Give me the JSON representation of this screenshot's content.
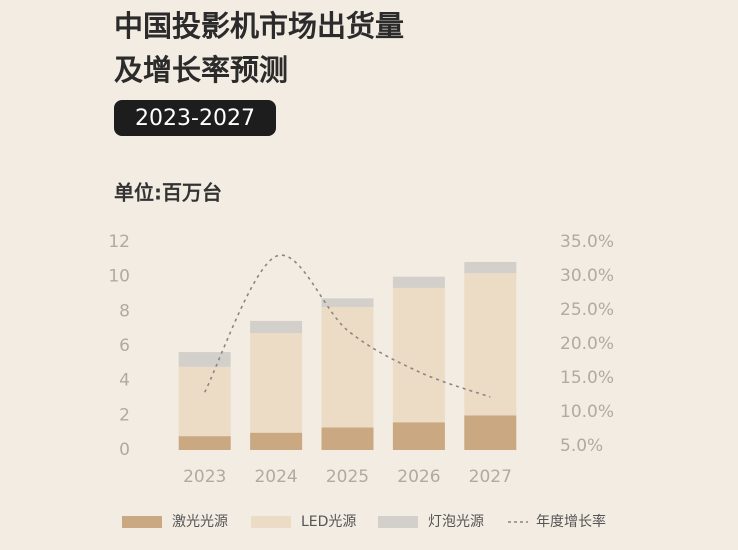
{
  "chart_data": {
    "type": "stacked-bar-line",
    "title": [
      "中国投影机市场出货量",
      "及增长率预测"
    ],
    "badge": "2023-2027",
    "unit_label": "单位:百万台",
    "categories": [
      "2023",
      "2024",
      "2025",
      "2026",
      "2027"
    ],
    "series": [
      {
        "name": "激光光源",
        "color": "#c9a882",
        "values": [
          0.8,
          1.0,
          1.3,
          1.6,
          2.0
        ]
      },
      {
        "name": "LED光源",
        "color": "#ecdcc6",
        "values": [
          4.0,
          5.75,
          6.95,
          7.75,
          8.2
        ]
      },
      {
        "name": "灯泡光源",
        "color": "#d3d0cb",
        "values": [
          0.85,
          0.7,
          0.5,
          0.65,
          0.65
        ]
      },
      {
        "name": "年度增长率",
        "color": "#8a8680",
        "axis": "y2",
        "line": "dotted",
        "values": [
          12.9,
          32.9,
          22.0,
          15.9,
          12.2
        ]
      }
    ],
    "ylim": [
      0,
      12
    ],
    "yticks": [
      0,
      2,
      4,
      6,
      8,
      10,
      12
    ],
    "y2lim": [
      4.4,
      35
    ],
    "y2ticks": [
      {
        "value": 5,
        "label": "5.0%"
      },
      {
        "value": 10,
        "label": "10.0%"
      },
      {
        "value": 15,
        "label": "15.0%"
      },
      {
        "value": 20,
        "label": "20.0%"
      },
      {
        "value": 25,
        "label": "25.0%"
      },
      {
        "value": 30,
        "label": "30.0%"
      },
      {
        "value": 35,
        "label": "35.0%"
      }
    ],
    "grid": false,
    "legend": "bottom"
  }
}
